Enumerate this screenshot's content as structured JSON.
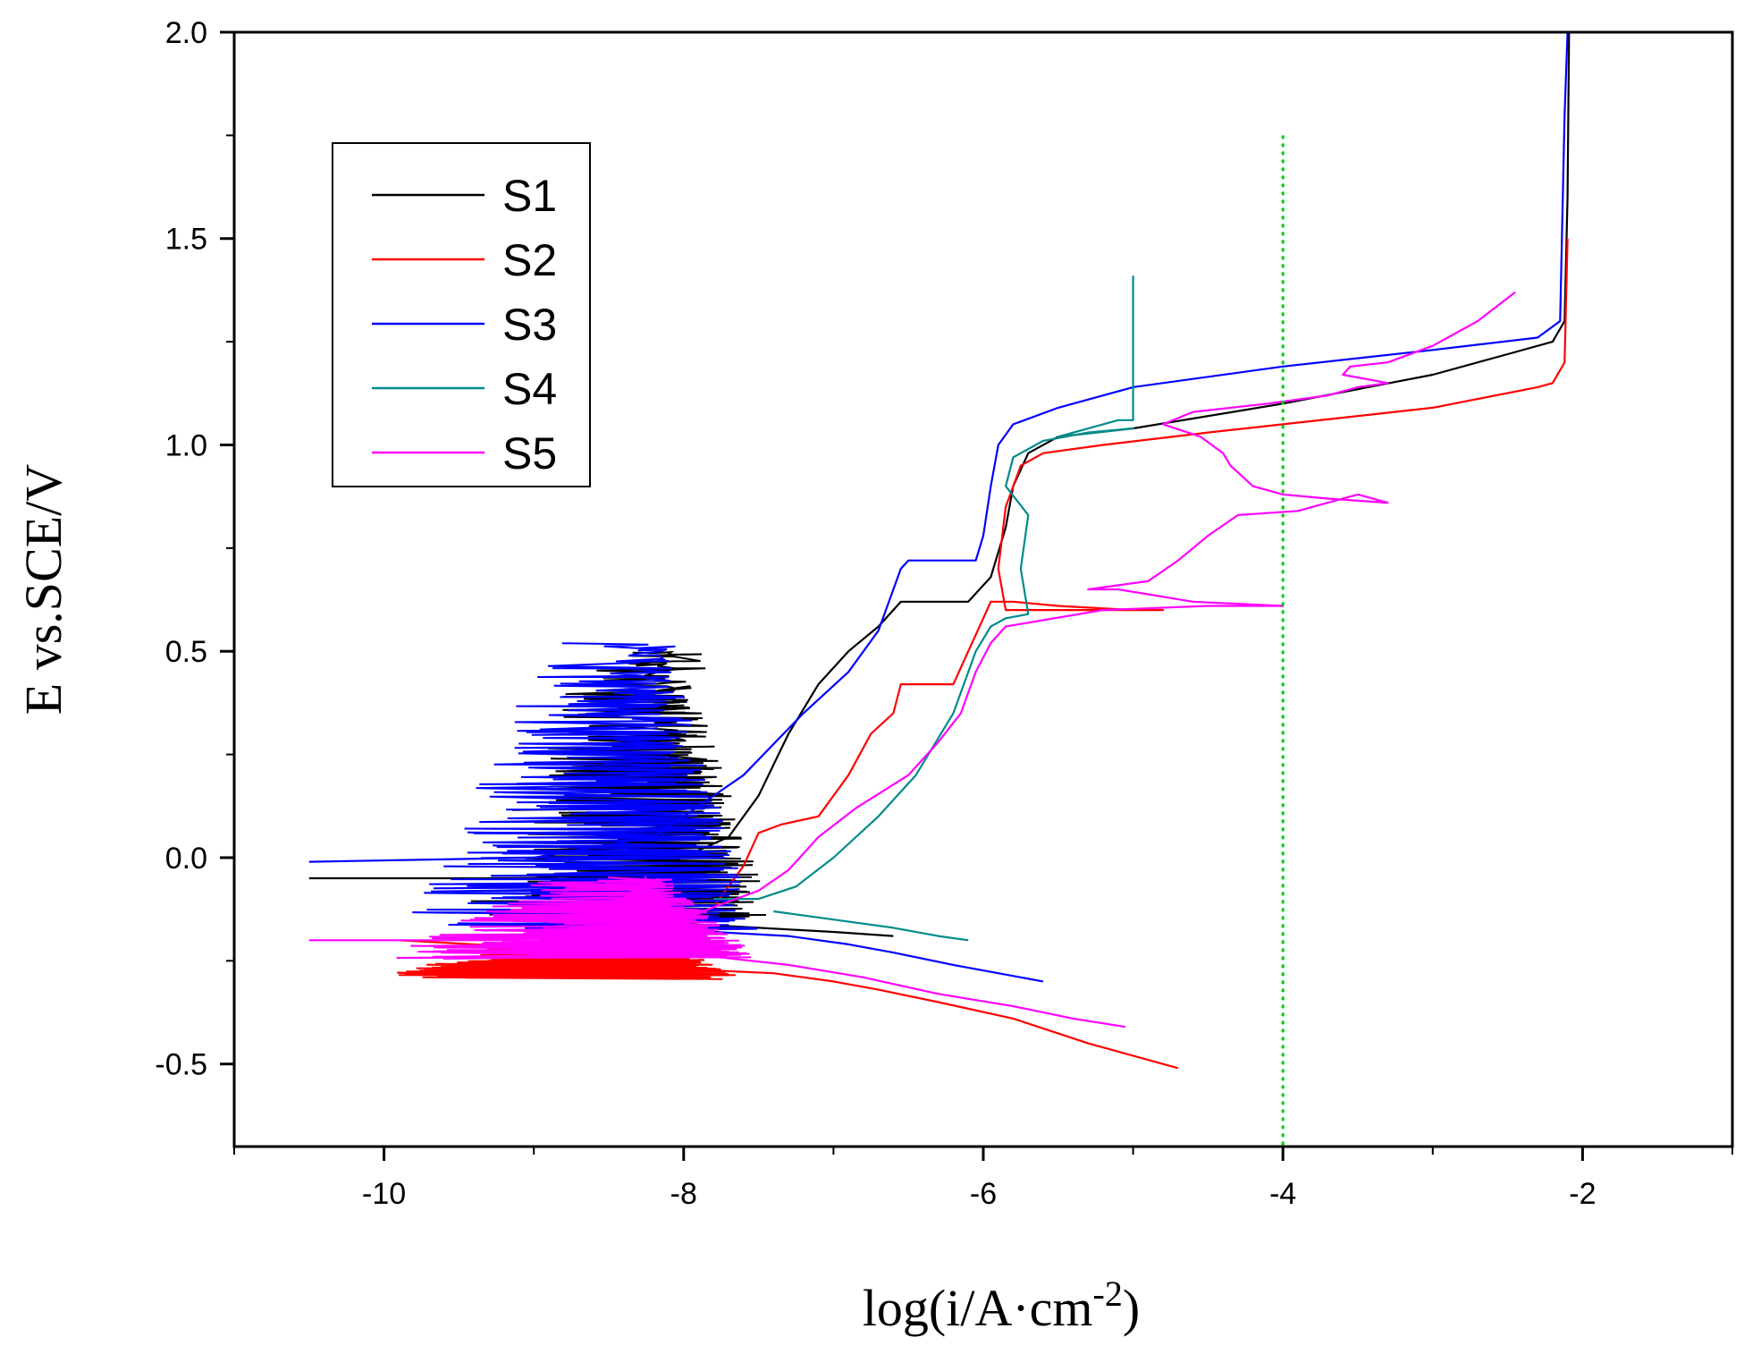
{
  "chart_data": {
    "type": "line",
    "title": "",
    "xlabel_main": "log(i/A·cm",
    "xlabel_sup": "-2",
    "xlabel_close": ")",
    "ylabel": "E vs.SCE/V",
    "xlim": [
      -11,
      -1
    ],
    "ylim": [
      -0.7,
      2.0
    ],
    "x_ticks": [
      -10,
      -8,
      -6,
      -4,
      -2
    ],
    "x_tick_labels": [
      "-10",
      "-8",
      "-6",
      "-4",
      "-2"
    ],
    "y_ticks": [
      -0.5,
      0.0,
      0.5,
      1.0,
      1.5,
      2.0
    ],
    "y_tick_labels": [
      "-0.5",
      "0.0",
      "0.5",
      "1.0",
      "1.5",
      "2.0"
    ],
    "grid": false,
    "legend_position": "top-left",
    "reference_line": {
      "x": -4,
      "y_range": [
        -0.7,
        1.75
      ],
      "color": "#00cc00",
      "style": "dotted"
    },
    "series": [
      {
        "name": "S1",
        "color": "#000000",
        "cathodic": [
          [
            -8.6,
            -0.14
          ],
          [
            -8.0,
            -0.16
          ],
          [
            -7.5,
            -0.17
          ],
          [
            -7.0,
            -0.18
          ],
          [
            -6.6,
            -0.19
          ]
        ],
        "anodic": [
          [
            -10.5,
            -0.05
          ],
          [
            -9.0,
            -0.05
          ],
          [
            -8.2,
            -0.03
          ],
          [
            -7.7,
            0.05
          ],
          [
            -7.5,
            0.15
          ],
          [
            -7.3,
            0.3
          ],
          [
            -7.1,
            0.42
          ],
          [
            -6.9,
            0.5
          ],
          [
            -6.7,
            0.56
          ],
          [
            -6.55,
            0.62
          ],
          [
            -6.1,
            0.62
          ],
          [
            -5.95,
            0.68
          ],
          [
            -5.85,
            0.8
          ],
          [
            -5.8,
            0.9
          ],
          [
            -5.7,
            0.98
          ],
          [
            -5.5,
            1.02
          ],
          [
            -5.0,
            1.04
          ],
          [
            -4.0,
            1.1
          ],
          [
            -3.0,
            1.17
          ],
          [
            -2.5,
            1.22
          ],
          [
            -2.2,
            1.25
          ],
          [
            -2.12,
            1.3
          ],
          [
            -2.1,
            1.6
          ],
          [
            -2.09,
            2.0
          ]
        ],
        "noise": {
          "x_min": -9.0,
          "x_max": -7.4,
          "y_min": -0.15,
          "y_max": 0.5
        }
      },
      {
        "name": "S2",
        "color": "#ff0000",
        "cathodic": [
          [
            -8.8,
            -0.25
          ],
          [
            -8.0,
            -0.27
          ],
          [
            -7.4,
            -0.28
          ],
          [
            -7.0,
            -0.3
          ],
          [
            -6.7,
            -0.32
          ],
          [
            -6.3,
            -0.35
          ],
          [
            -5.8,
            -0.39
          ],
          [
            -5.3,
            -0.45
          ],
          [
            -4.7,
            -0.51
          ]
        ],
        "anodic": [
          [
            -9.9,
            -0.2
          ],
          [
            -8.9,
            -0.22
          ],
          [
            -8.2,
            -0.2
          ],
          [
            -7.8,
            -0.12
          ],
          [
            -7.6,
            -0.02
          ],
          [
            -7.5,
            0.06
          ],
          [
            -7.35,
            0.08
          ],
          [
            -7.1,
            0.1
          ],
          [
            -6.9,
            0.2
          ],
          [
            -6.75,
            0.3
          ],
          [
            -6.6,
            0.35
          ],
          [
            -6.55,
            0.42
          ],
          [
            -6.2,
            0.42
          ],
          [
            -6.1,
            0.5
          ],
          [
            -6.0,
            0.58
          ],
          [
            -5.95,
            0.62
          ],
          [
            -5.8,
            0.62
          ],
          [
            -5.5,
            0.61
          ],
          [
            -5.0,
            0.6
          ],
          [
            -4.8,
            0.6
          ],
          [
            -5.3,
            0.6
          ],
          [
            -5.85,
            0.6
          ],
          [
            -5.9,
            0.7
          ],
          [
            -5.85,
            0.85
          ],
          [
            -5.75,
            0.95
          ],
          [
            -5.6,
            0.98
          ],
          [
            -5.2,
            1.0
          ],
          [
            -4.5,
            1.03
          ],
          [
            -4.0,
            1.05
          ],
          [
            -3.0,
            1.09
          ],
          [
            -2.3,
            1.14
          ],
          [
            -2.2,
            1.15
          ],
          [
            -2.12,
            1.2
          ],
          [
            -2.1,
            1.5
          ]
        ],
        "noise": {
          "x_min": -9.7,
          "x_max": -7.6,
          "y_min": -0.29,
          "y_max": -0.2
        }
      },
      {
        "name": "S3",
        "color": "#0000ff",
        "cathodic": [
          [
            -8.4,
            -0.16
          ],
          [
            -7.8,
            -0.18
          ],
          [
            -7.3,
            -0.19
          ],
          [
            -6.9,
            -0.21
          ],
          [
            -6.6,
            -0.23
          ],
          [
            -6.2,
            -0.26
          ],
          [
            -5.9,
            -0.28
          ],
          [
            -5.6,
            -0.3
          ]
        ],
        "anodic": [
          [
            -10.5,
            -0.01
          ],
          [
            -9.0,
            0.0
          ],
          [
            -8.2,
            0.05
          ],
          [
            -7.6,
            0.2
          ],
          [
            -7.2,
            0.35
          ],
          [
            -6.9,
            0.45
          ],
          [
            -6.7,
            0.55
          ],
          [
            -6.6,
            0.65
          ],
          [
            -6.55,
            0.7
          ],
          [
            -6.5,
            0.72
          ],
          [
            -6.05,
            0.72
          ],
          [
            -6.0,
            0.78
          ],
          [
            -5.95,
            0.9
          ],
          [
            -5.9,
            1.0
          ],
          [
            -5.8,
            1.05
          ],
          [
            -5.5,
            1.09
          ],
          [
            -5.0,
            1.14
          ],
          [
            -4.0,
            1.19
          ],
          [
            -3.0,
            1.23
          ],
          [
            -2.3,
            1.26
          ],
          [
            -2.15,
            1.3
          ],
          [
            -2.12,
            1.8
          ],
          [
            -2.1,
            2.0
          ]
        ],
        "noise": {
          "x_min": -9.5,
          "x_max": -7.5,
          "y_min": -0.18,
          "y_max": 0.52
        }
      },
      {
        "name": "S4",
        "color": "#008b8b",
        "cathodic": [
          [
            -7.4,
            -0.13
          ],
          [
            -7.0,
            -0.15
          ],
          [
            -6.6,
            -0.17
          ],
          [
            -6.3,
            -0.19
          ],
          [
            -6.1,
            -0.2
          ]
        ],
        "anodic": [
          [
            -7.8,
            -0.1
          ],
          [
            -7.5,
            -0.1
          ],
          [
            -7.25,
            -0.07
          ],
          [
            -7.0,
            0.0
          ],
          [
            -6.7,
            0.1
          ],
          [
            -6.45,
            0.2
          ],
          [
            -6.2,
            0.35
          ],
          [
            -6.05,
            0.5
          ],
          [
            -5.95,
            0.56
          ],
          [
            -5.85,
            0.58
          ],
          [
            -5.7,
            0.59
          ],
          [
            -5.75,
            0.7
          ],
          [
            -5.7,
            0.83
          ],
          [
            -5.85,
            0.9
          ],
          [
            -5.8,
            0.97
          ],
          [
            -5.6,
            1.01
          ],
          [
            -5.3,
            1.03
          ],
          [
            -5.0,
            1.04
          ],
          [
            -5.5,
            1.02
          ],
          [
            -5.1,
            1.06
          ],
          [
            -5.0,
            1.06
          ],
          [
            -5.0,
            1.41
          ]
        ]
      },
      {
        "name": "S5",
        "color": "#ff00ff",
        "cathodic": [
          [
            -8.5,
            -0.22
          ],
          [
            -7.8,
            -0.24
          ],
          [
            -7.3,
            -0.26
          ],
          [
            -6.8,
            -0.29
          ],
          [
            -6.3,
            -0.33
          ],
          [
            -5.8,
            -0.36
          ],
          [
            -5.4,
            -0.39
          ],
          [
            -5.05,
            -0.41
          ]
        ],
        "anodic": [
          [
            -10.5,
            -0.2
          ],
          [
            -9.2,
            -0.2
          ],
          [
            -8.2,
            -0.18
          ],
          [
            -7.8,
            -0.12
          ],
          [
            -7.5,
            -0.08
          ],
          [
            -7.3,
            -0.03
          ],
          [
            -7.1,
            0.05
          ],
          [
            -6.85,
            0.12
          ],
          [
            -6.5,
            0.2
          ],
          [
            -6.3,
            0.28
          ],
          [
            -6.15,
            0.35
          ],
          [
            -6.05,
            0.45
          ],
          [
            -5.95,
            0.52
          ],
          [
            -5.85,
            0.56
          ],
          [
            -5.2,
            0.6
          ],
          [
            -4.5,
            0.61
          ],
          [
            -4.0,
            0.61
          ],
          [
            -4.6,
            0.62
          ],
          [
            -5.1,
            0.65
          ],
          [
            -5.3,
            0.65
          ],
          [
            -4.9,
            0.67
          ],
          [
            -4.7,
            0.72
          ],
          [
            -4.5,
            0.78
          ],
          [
            -4.3,
            0.83
          ],
          [
            -3.9,
            0.84
          ],
          [
            -3.7,
            0.86
          ],
          [
            -3.5,
            0.88
          ],
          [
            -3.3,
            0.86
          ],
          [
            -3.7,
            0.87
          ],
          [
            -4.0,
            0.88
          ],
          [
            -4.2,
            0.9
          ],
          [
            -4.35,
            0.95
          ],
          [
            -4.4,
            0.98
          ],
          [
            -4.55,
            1.02
          ],
          [
            -4.8,
            1.05
          ],
          [
            -4.6,
            1.08
          ],
          [
            -4.1,
            1.1
          ],
          [
            -3.7,
            1.12
          ],
          [
            -3.5,
            1.14
          ],
          [
            -3.3,
            1.15
          ],
          [
            -3.6,
            1.17
          ],
          [
            -3.55,
            1.19
          ],
          [
            -3.3,
            1.2
          ],
          [
            -3.0,
            1.24
          ],
          [
            -2.7,
            1.3
          ],
          [
            -2.45,
            1.37
          ]
        ],
        "noise": {
          "x_min": -9.6,
          "x_max": -7.5,
          "y_min": -0.24,
          "y_max": -0.05
        }
      }
    ]
  }
}
